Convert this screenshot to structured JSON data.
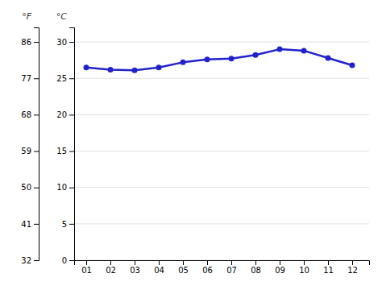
{
  "chart_data": {
    "type": "line",
    "x": [
      1,
      2,
      3,
      4,
      5,
      6,
      7,
      8,
      9,
      10,
      11,
      12
    ],
    "values": [
      26.5,
      26.2,
      26.1,
      26.5,
      27.2,
      27.6,
      27.7,
      28.2,
      29.0,
      28.8,
      27.8,
      26.8
    ],
    "color": "#2222cc",
    "marker": "circle",
    "xlim": [
      0.5,
      12.7
    ],
    "xticks": [
      {
        "value": 1,
        "label": "01"
      },
      {
        "value": 2,
        "label": "02"
      },
      {
        "value": 3,
        "label": "03"
      },
      {
        "value": 4,
        "label": "04"
      },
      {
        "value": 5,
        "label": "05"
      },
      {
        "value": 6,
        "label": "06"
      },
      {
        "value": 7,
        "label": "07"
      },
      {
        "value": 8,
        "label": "08"
      },
      {
        "value": 9,
        "label": "09"
      },
      {
        "value": 10,
        "label": "10"
      },
      {
        "value": 11,
        "label": "11"
      },
      {
        "value": 12,
        "label": "12"
      }
    ],
    "ylim": [
      0,
      32
    ],
    "yticks": [
      0,
      5,
      10,
      15,
      20,
      25,
      30
    ],
    "ylabel": "°C",
    "y2lim": [
      32,
      89.6
    ],
    "y2ticks": [
      32,
      41,
      50,
      59,
      68,
      77,
      86
    ],
    "y2label": "°F",
    "grid": true
  }
}
